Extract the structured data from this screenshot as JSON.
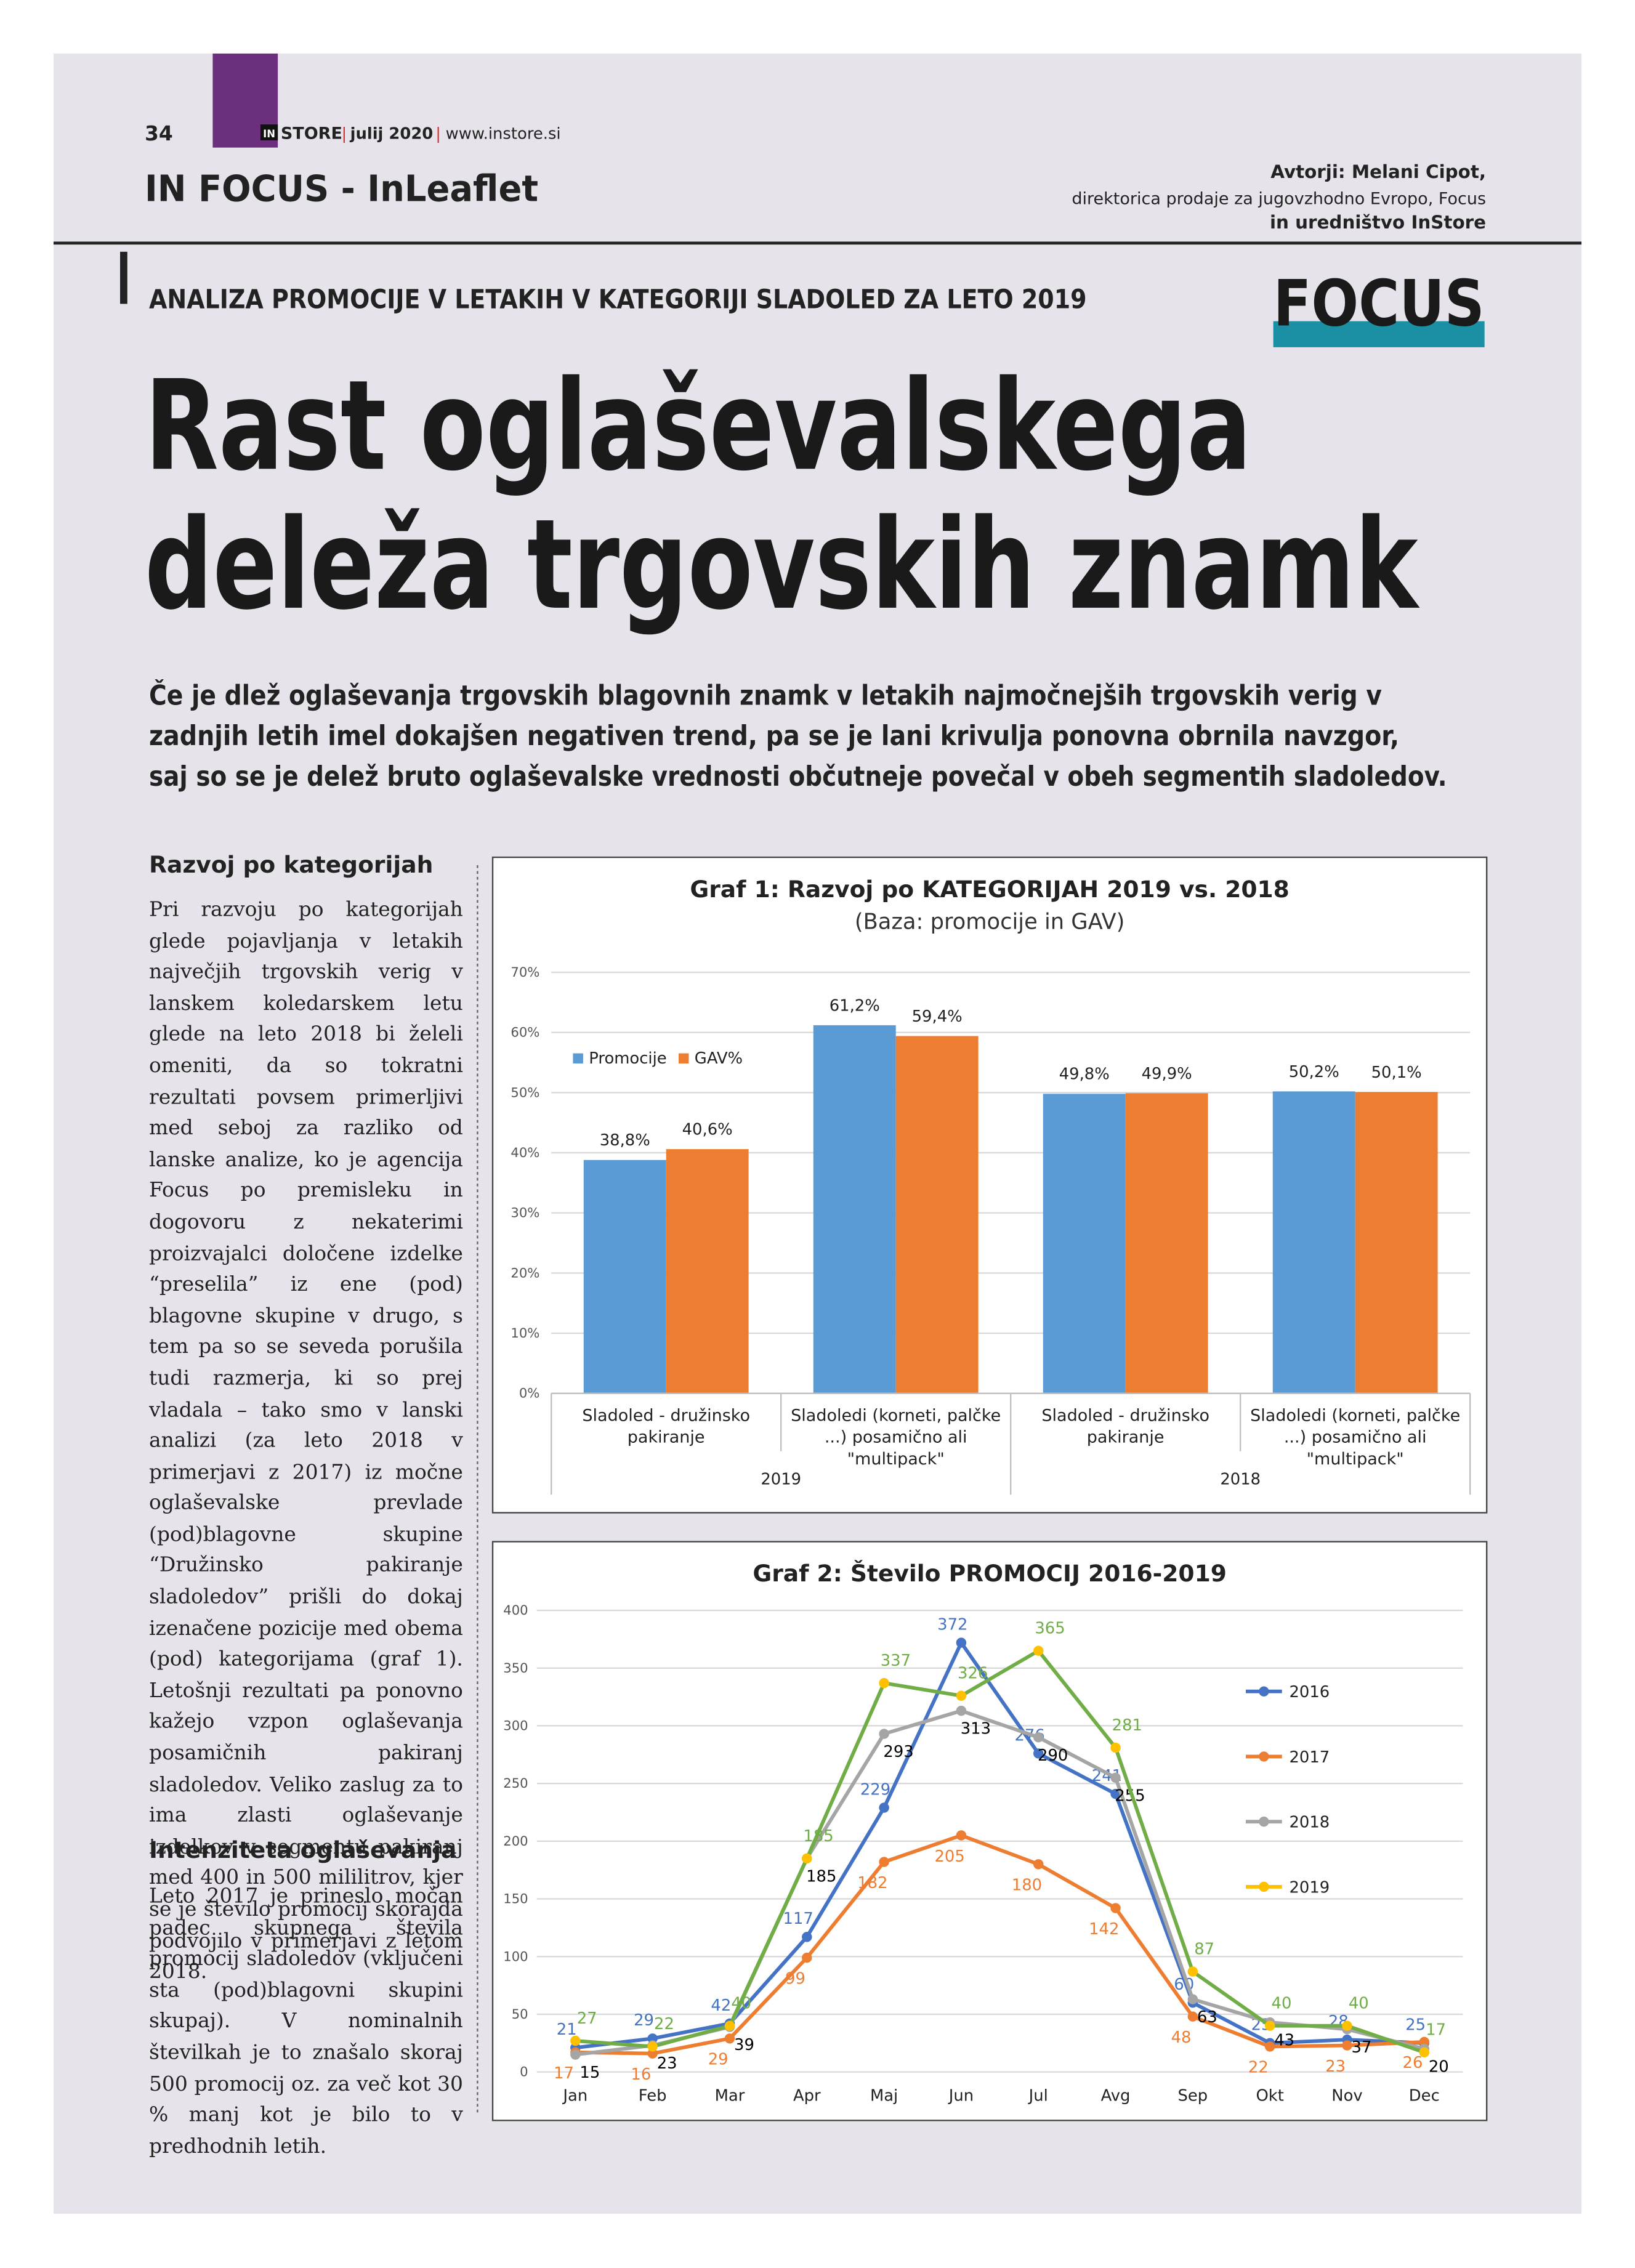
{
  "header": {
    "page_number": "34",
    "brand_prefix": "IN",
    "brand": "STORE",
    "issue": "julij 2020",
    "website": "www.instore.si",
    "section": "IN FOCUS - InLeaflet",
    "authors": [
      "Avtorji: Melani Cipot,",
      "direktorica prodaje za jugovzhodno Evropo, Focus",
      "in uredništvo InStore"
    ],
    "kicker": "ANALIZA PROMOCIJE V LETAKIH V KATEGORIJI SLADOLED ZA LETO 2019",
    "logo": "FOCUS"
  },
  "article": {
    "title_lines": [
      "Rast oglaševalskega",
      "deleža trgovskih znamk"
    ],
    "lead_lines": [
      "Če je dlež oglaševanja trgovskih blagovnih znamk v letakih najmočnejših trgovskih verig v",
      "zadnjih letih imel dokajšen negativen trend, pa se je lani krivulja ponovna obrnila navzgor,",
      "saj so se je delež bruto oglaševalske vrednosti občutneje povečal v obeh segmentih sladoledov."
    ],
    "sections": [
      {
        "heading": "Razvoj po kategorijah",
        "text": "Pri razvoju po kategorijah glede pojavljanja v letakih največjih trgovskih verig v lanskem koledarskem letu glede na leto 2018 bi želeli omeniti, da so tokratni rezultati povsem primerljivi med seboj za razliko od lanske analize, ko je agencija Focus po premisleku in dogovoru z nekaterimi proizvajalci določene izdelke “preselila” iz ene (pod) blagovne skupine v drugo, s tem pa so se seveda porušila tudi razmerja, ki so prej vladala – tako smo v lanski analizi (za leto 2018 v primerjavi z 2017) iz močne oglaševalske prevlade (pod)blagovne skupine “Družinsko pakiranje sladoledov” prišli do dokaj izenačene pozicije med obema (pod) kategorijama (graf 1). Letošnji rezultati pa ponovno kažejo vzpon oglaševanja posamičnih pakiranj sladoledov. Veliko zaslug za to ima zlasti oglaševanje izdelkov v segmentu pakiranj med 400 in 500 mililitrov, kjer se je število promocij skorajda podvojilo v primerjavi z letom 2018."
      },
      {
        "heading": "Intenziteta oglaševanja",
        "text": "Leto 2017 je prineslo močan padec skupnega števila promocij sladoledov (vključeni sta (pod)blagovni skupini skupaj). V nominalnih številkah je to znašalo skoraj 500 promocij oz. za več kot 30 % manj kot je bilo to v predhodnih letih."
      }
    ]
  },
  "chart_data": [
    {
      "type": "bar",
      "title": "Graf 1: Razvoj po KATEGORIJAH 2019 vs. 2018",
      "subtitle": "(Baza: promocije in GAV)",
      "categories": [
        "Sladoled - družinsko pakiranje",
        "Sladoledi (korneti, palčke ...) posamično  ali \"multipack\"",
        "Sladoled - družinsko pakiranje",
        "Sladoledi (korneti, palčke ...) posamično  ali \"multipack\""
      ],
      "category_groups": [
        "2019",
        "2019",
        "2018",
        "2018"
      ],
      "series": [
        {
          "name": "Promocije",
          "color": "#5b9bd5",
          "values": [
            38.8,
            61.2,
            49.8,
            50.2
          ],
          "value_labels": [
            "38,8%",
            "61,2%",
            "49,8%",
            "50,2%"
          ]
        },
        {
          "name": "GAV%",
          "color": "#ed7d31",
          "values": [
            40.6,
            59.4,
            49.9,
            50.1
          ],
          "value_labels": [
            "40,6%",
            "59,4%",
            "49,9%",
            "50,1%"
          ]
        }
      ],
      "ylim": [
        0,
        70
      ],
      "yticks": [
        {
          "value": 0,
          "label": "0%"
        },
        {
          "value": 10,
          "label": "10%"
        },
        {
          "value": 20,
          "label": "20%"
        },
        {
          "value": 30,
          "label": "30%"
        },
        {
          "value": 40,
          "label": "40%"
        },
        {
          "value": 50,
          "label": "50%"
        },
        {
          "value": 60,
          "label": "60%"
        },
        {
          "value": 70,
          "label": "70%"
        }
      ],
      "grid": true,
      "legend": "top-left"
    },
    {
      "type": "line",
      "title": "Graf 2: Število PROMOCIJ 2016-2019",
      "categories": [
        "Jan",
        "Feb",
        "Mar",
        "Apr",
        "Maj",
        "Jun",
        "Jul",
        "Avg",
        "Sep",
        "Okt",
        "Nov",
        "Dec"
      ],
      "series": [
        {
          "name": "2016",
          "color": "#4472c4",
          "label_color": "#4472c4",
          "values": [
            21,
            29,
            42,
            117,
            229,
            372,
            276,
            241,
            60,
            25,
            28,
            25
          ]
        },
        {
          "name": "2017",
          "color": "#ed7d31",
          "label_color": "#ed7d31",
          "values": [
            17,
            16,
            29,
            99,
            182,
            205,
            180,
            142,
            48,
            22,
            23,
            26
          ]
        },
        {
          "name": "2018",
          "color": "#a5a5a5",
          "label_color": "#000000",
          "values": [
            15,
            23,
            39,
            185,
            293,
            313,
            290,
            255,
            63,
            43,
            37,
            20
          ]
        },
        {
          "name": "2019",
          "color": "#ffc000",
          "line_color": "#70ad47",
          "label_color": "#70ad47",
          "values": [
            27,
            22,
            40,
            185,
            337,
            326,
            365,
            281,
            87,
            40,
            40,
            17
          ]
        }
      ],
      "ylim": [
        0,
        400
      ],
      "yticks": [
        0,
        50,
        100,
        150,
        200,
        250,
        300,
        350,
        400
      ],
      "grid": true,
      "legend": "right"
    }
  ]
}
